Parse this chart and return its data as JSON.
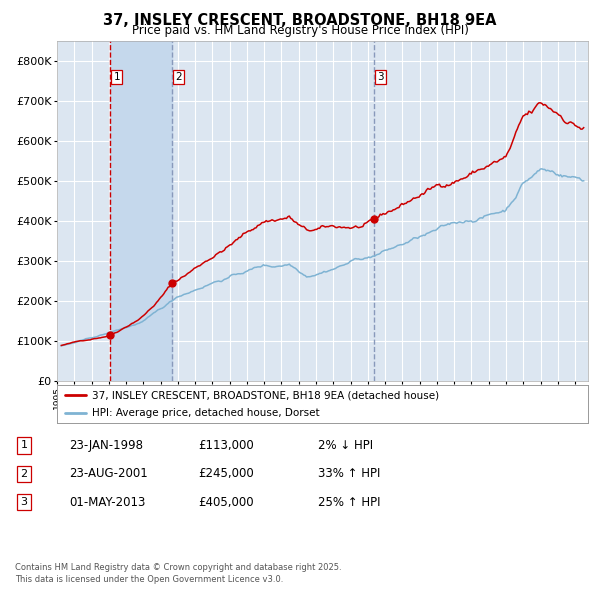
{
  "title": "37, INSLEY CRESCENT, BROADSTONE, BH18 9EA",
  "subtitle": "Price paid vs. HM Land Registry's House Price Index (HPI)",
  "ylim": [
    0,
    850000
  ],
  "yticks": [
    0,
    100000,
    200000,
    300000,
    400000,
    500000,
    600000,
    700000,
    800000
  ],
  "ytick_labels": [
    "£0",
    "£100K",
    "£200K",
    "£300K",
    "£400K",
    "£500K",
    "£600K",
    "£700K",
    "£800K"
  ],
  "background_color": "#ffffff",
  "plot_bg_color": "#dce6f1",
  "grid_color": "#ffffff",
  "red_line_color": "#cc0000",
  "blue_line_color": "#7fb3d3",
  "vline1_color": "#cc0000",
  "vline23_color": "#8899bb",
  "span_color": "#c5d8ec",
  "sale1_date": 1998.07,
  "sale1_price": 113000,
  "sale2_date": 2001.65,
  "sale2_price": 245000,
  "sale3_date": 2013.33,
  "sale3_price": 405000,
  "legend_label_red": "37, INSLEY CRESCENT, BROADSTONE, BH18 9EA (detached house)",
  "legend_label_blue": "HPI: Average price, detached house, Dorset",
  "table_data": [
    {
      "num": "1",
      "date": "23-JAN-1998",
      "price": "£113,000",
      "change": "2% ↓ HPI"
    },
    {
      "num": "2",
      "date": "23-AUG-2001",
      "price": "£245,000",
      "change": "33% ↑ HPI"
    },
    {
      "num": "3",
      "date": "01-MAY-2013",
      "price": "£405,000",
      "change": "25% ↑ HPI"
    }
  ],
  "footer": "Contains HM Land Registry data © Crown copyright and database right 2025.\nThis data is licensed under the Open Government Licence v3.0."
}
